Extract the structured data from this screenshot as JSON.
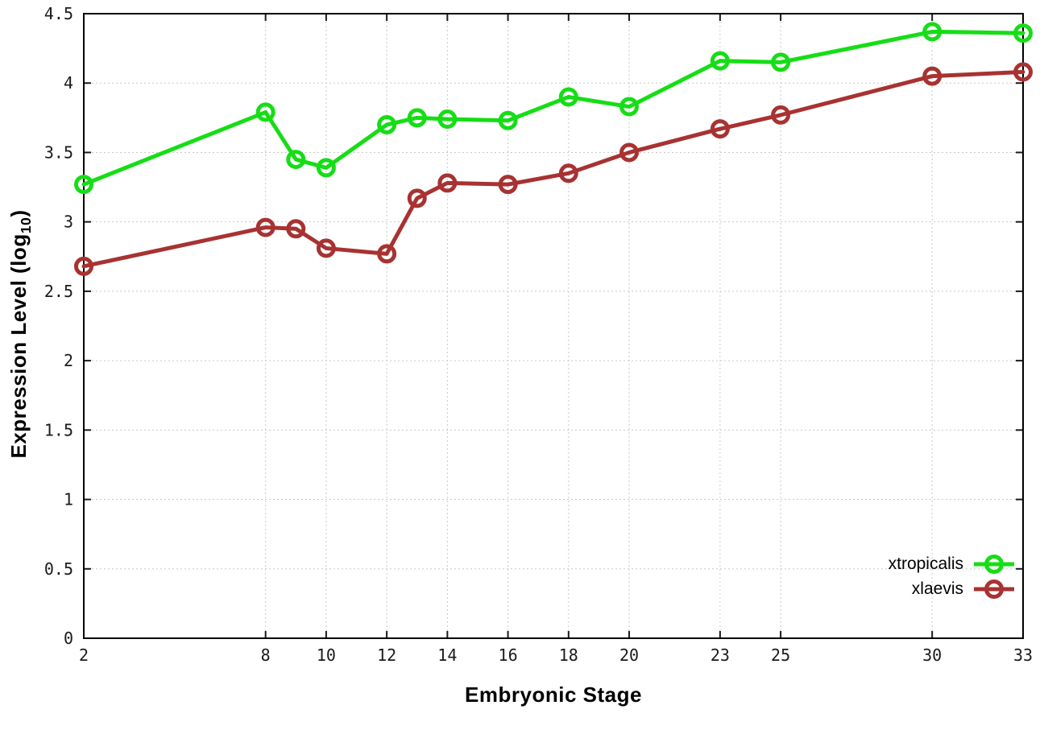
{
  "figure": {
    "background": "#ffffff",
    "border_color": "#000000",
    "grid_color": "#c9c9c9",
    "tick_color": "#1a1a1a"
  },
  "chart_data": {
    "type": "line",
    "title": "",
    "xlabel": "Embryonic Stage",
    "ylabel_main": "Expression Level (log",
    "ylabel_sub": "10",
    "ylabel_close": ")",
    "xlim": [
      2,
      33
    ],
    "ylim": [
      0,
      4.5
    ],
    "xticks": [
      2,
      8,
      10,
      12,
      14,
      16,
      18,
      20,
      23,
      25,
      30,
      33
    ],
    "yticks": [
      0,
      0.5,
      1,
      1.5,
      2,
      2.5,
      3,
      3.5,
      4,
      4.5
    ],
    "grid": true,
    "legend_position": "bottom-right",
    "x": [
      2,
      8,
      9,
      10,
      12,
      13,
      14,
      16,
      18,
      20,
      23,
      25,
      30,
      33
    ],
    "series": [
      {
        "name": "xtropicalis",
        "color": "#16dd16",
        "marker": "open-circle",
        "values": [
          3.27,
          3.79,
          3.45,
          3.39,
          3.7,
          3.75,
          3.74,
          3.73,
          3.9,
          3.83,
          4.16,
          4.15,
          4.37,
          4.36
        ]
      },
      {
        "name": "xlaevis",
        "color": "#a83232",
        "marker": "open-circle",
        "values": [
          2.68,
          2.96,
          2.95,
          2.81,
          2.77,
          3.17,
          3.28,
          3.27,
          3.35,
          3.5,
          3.67,
          3.77,
          4.05,
          4.08
        ]
      }
    ]
  }
}
